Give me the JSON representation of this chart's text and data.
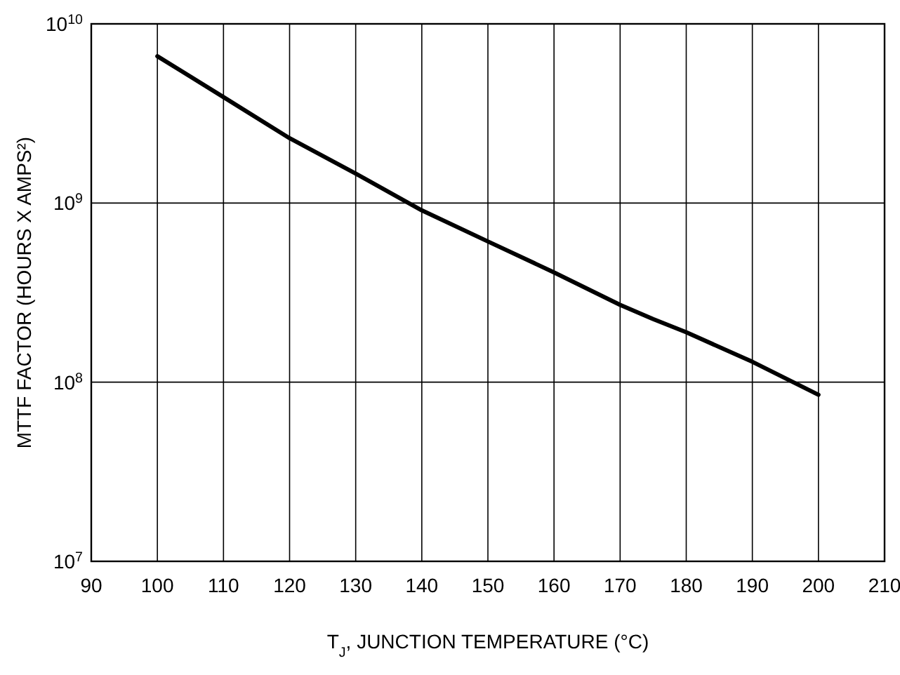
{
  "chart_data": {
    "type": "line",
    "xlabel": "T$_{J}$, JUNCTION TEMPERATURE (°C)",
    "ylabel": "MTTF FACTOR (HOURS X AMPS²)",
    "x": [
      100,
      110,
      120,
      130,
      140,
      150,
      160,
      170,
      175,
      180,
      190,
      200
    ],
    "series": [
      {
        "color": "#000000",
        "values": [
          6600000000.0,
          3900000000.0,
          2300000000.0,
          1460000000.0,
          910000000.0,
          610000000.0,
          410000000.0,
          270000000.0,
          225000000.0,
          190000000.0,
          130000000.0,
          85000000.0
        ]
      }
    ],
    "xlim": [
      90,
      210
    ],
    "xticks": [
      90,
      100,
      110,
      120,
      130,
      140,
      150,
      160,
      170,
      180,
      190,
      200,
      210
    ],
    "ylim": [
      10000000.0,
      10000000000.0
    ],
    "yticks": [
      {
        "value": 10000000.0,
        "label": "10$^{7}$"
      },
      {
        "value": 100000000.0,
        "label": "10$^{8}$"
      },
      {
        "value": 1000000000.0,
        "label": "10$^{9}$"
      },
      {
        "value": 10000000000.0,
        "label": "10$^{10}$"
      }
    ],
    "log": "y",
    "grid": true
  }
}
